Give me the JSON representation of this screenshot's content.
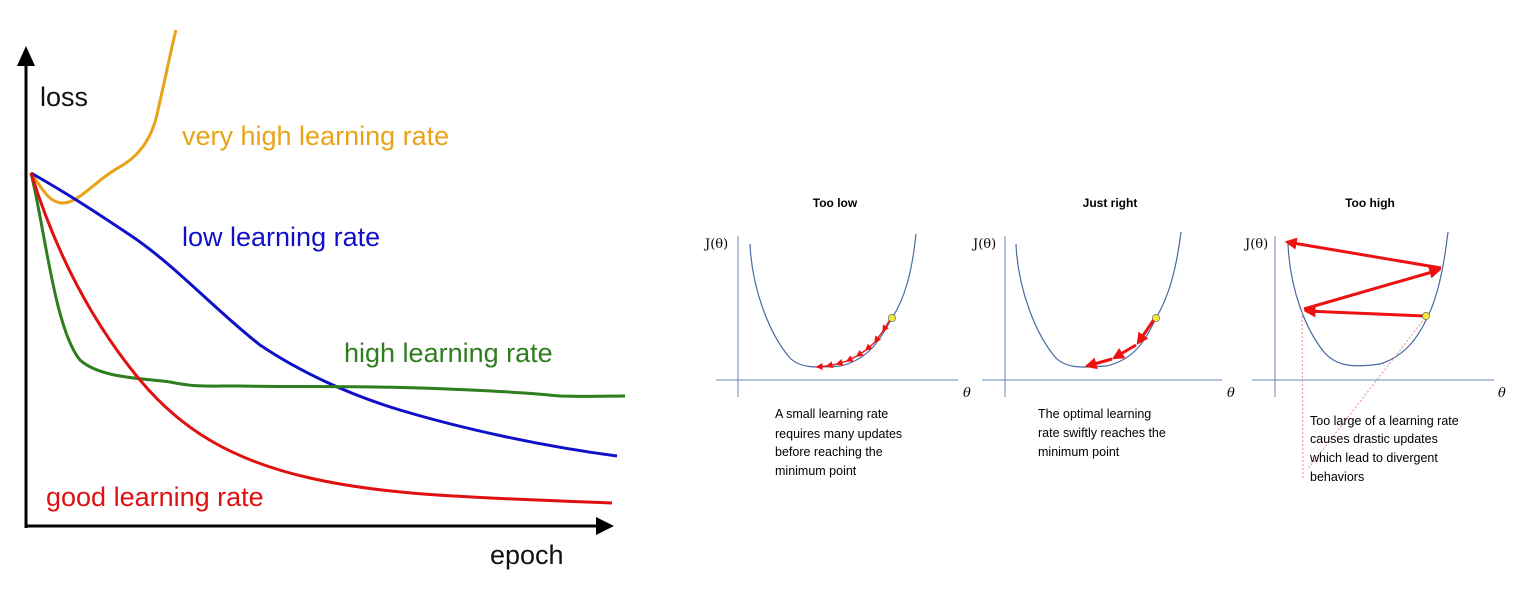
{
  "left_chart": {
    "y_axis_label": "loss",
    "x_axis_label": "epoch",
    "curves": [
      {
        "id": "very-high",
        "label": "very high learning rate",
        "color": "#E8A317"
      },
      {
        "id": "low",
        "label": "low learning rate",
        "color": "#1010C8"
      },
      {
        "id": "high",
        "label": "high learning rate",
        "color": "#2E7D1E"
      },
      {
        "id": "good",
        "label": "good learning rate",
        "color": "#E01010"
      }
    ]
  },
  "panels": [
    {
      "title": "Too low",
      "y_label": "J(θ)",
      "x_label": "θ",
      "caption": [
        "A small learning rate",
        "requires many updates",
        "before reaching the",
        "minimum point"
      ]
    },
    {
      "title": "Just right",
      "y_label": "J(θ)",
      "x_label": "θ",
      "caption": [
        "The optimal learning",
        "rate swiftly reaches the",
        "minimum point"
      ]
    },
    {
      "title": "Too high",
      "y_label": "J(θ)",
      "x_label": "θ",
      "caption": [
        "Too large of a learning rate",
        "causes drastic updates",
        "which lead to divergent",
        "behaviors"
      ]
    }
  ],
  "colors": {
    "axis": "#000000",
    "panel_axis": "#6A88B8",
    "bowl": "#4A6AA0",
    "arrow": "#EE1111",
    "point": "#F3E93A"
  }
}
